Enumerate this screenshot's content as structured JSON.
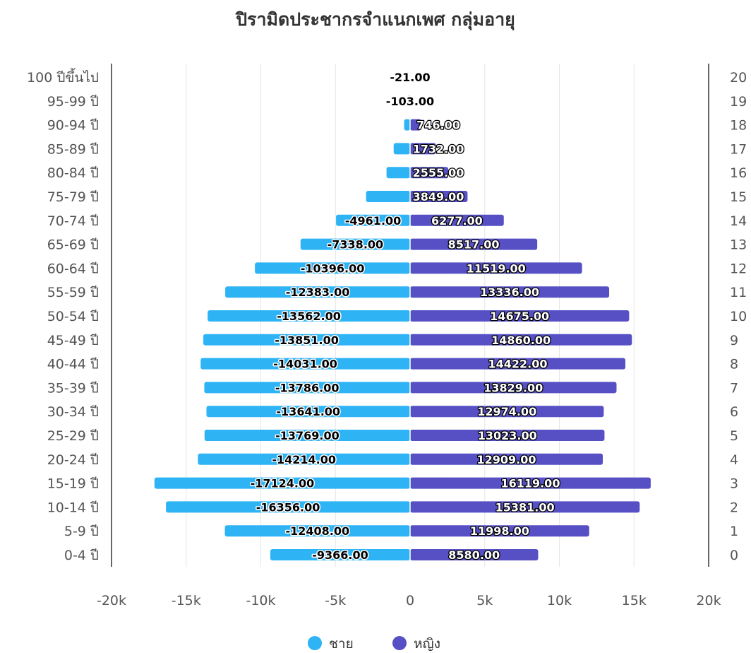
{
  "chart_data": {
    "type": "bar",
    "orientation": "horizontal",
    "title": "ปิรามิดประชากรจำแนกเพศ กลุ่มอายุ",
    "categories": [
      "0-4 ปี",
      "5-9 ปี",
      "10-14 ปี",
      "15-19 ปี",
      "20-24 ปี",
      "25-29 ปี",
      "30-34 ปี",
      "35-39 ปี",
      "40-44 ปี",
      "45-49 ปี",
      "50-54 ปี",
      "55-59 ปี",
      "60-64 ปี",
      "65-69 ปี",
      "70-74 ปี",
      "75-79 ปี",
      "80-84 ปี",
      "85-89 ปี",
      "90-94 ปี",
      "95-99 ปี",
      "100 ปีขึ้นไป"
    ],
    "right_axis_labels": [
      "0",
      "1",
      "2",
      "3",
      "4",
      "5",
      "6",
      "7",
      "8",
      "9",
      "10",
      "11",
      "12",
      "13",
      "14",
      "15",
      "16",
      "17",
      "18",
      "19",
      "20"
    ],
    "series": [
      {
        "name": "ชาย",
        "color": "#2eb4f5",
        "values": [
          -9366,
          -12408,
          -16356,
          -17124,
          -14214,
          -13769,
          -13641,
          -13786,
          -14031,
          -13851,
          -13562,
          -12383,
          -10396,
          -7338,
          -4961,
          -2950,
          -1580,
          -1100,
          -400,
          -103,
          -21
        ],
        "labels": [
          "-9366.00",
          "-12408.00",
          "-16356.00",
          "-17124.00",
          "-14214.00",
          "-13769.00",
          "-13641.00",
          "-13786.00",
          "-14031.00",
          "-13851.00",
          "-13562.00",
          "-12383.00",
          "-10396.00",
          "-7338.00",
          "-4961.00",
          "",
          "",
          "",
          "",
          "-103.00",
          "-21.00"
        ]
      },
      {
        "name": "หญิง",
        "color": "#5650c4",
        "values": [
          8580,
          11998,
          15381,
          16119,
          12909,
          13023,
          12974,
          13829,
          14422,
          14860,
          14675,
          13336,
          11519,
          8517,
          6277,
          3849,
          2555,
          1732,
          746,
          0,
          0
        ],
        "labels": [
          "8580.00",
          "11998.00",
          "15381.00",
          "16119.00",
          "12909.00",
          "13023.00",
          "12974.00",
          "13829.00",
          "14422.00",
          "14860.00",
          "14675.00",
          "13336.00",
          "11519.00",
          "8517.00",
          "6277.00",
          "3849.00",
          "2555.00",
          "1732.00",
          "746.00",
          "",
          ""
        ]
      }
    ],
    "xlim": [
      -20000,
      20000
    ],
    "x_ticks": [
      -20000,
      -15000,
      -10000,
      -5000,
      0,
      5000,
      10000,
      15000,
      20000
    ],
    "x_tick_labels": [
      "-20k",
      "-15k",
      "-10k",
      "-5k",
      "0",
      "5k",
      "10k",
      "15k",
      "20k"
    ],
    "grid": true,
    "legend_position": "bottom-center",
    "xlabel": "",
    "ylabel": ""
  }
}
